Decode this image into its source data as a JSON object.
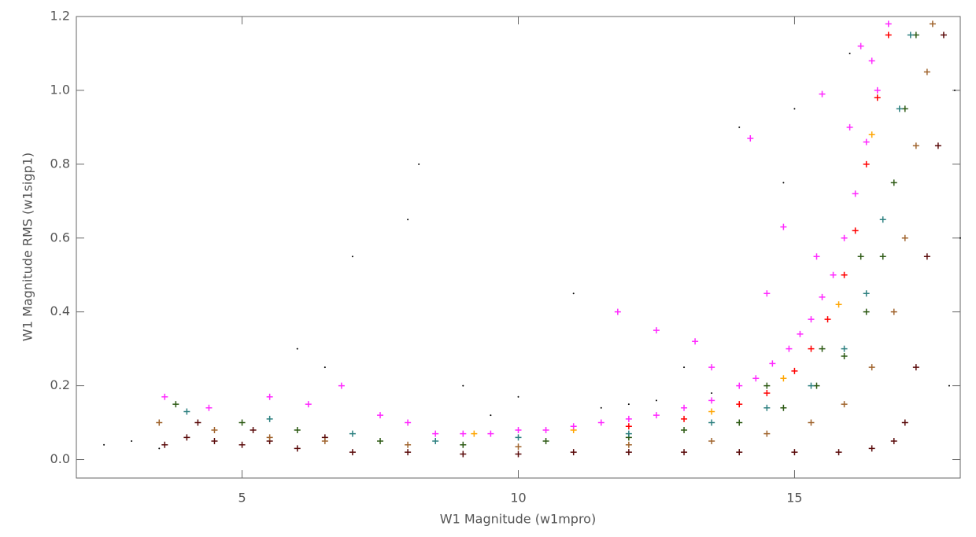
{
  "chart_data": {
    "type": "scatter",
    "xlabel": "W1 Magnitude (w1mpro)",
    "ylabel": "W1 Magnitude RMS (w1sigp1)",
    "xlim": [
      2,
      18
    ],
    "xticks": [
      5,
      10,
      15
    ],
    "ylim": [
      -0.05,
      1.2
    ],
    "yticks": [
      {
        "value": 0,
        "label": "0.0"
      },
      0.2,
      0.4,
      0.6,
      0.8,
      {
        "value": 1,
        "label": "1.0"
      },
      1.2
    ],
    "series": [
      {
        "color": "#000000",
        "marker": ".",
        "x": [
          2.5,
          3,
          3.5,
          4,
          6,
          7,
          8,
          9,
          10,
          11,
          12,
          13,
          14,
          15,
          16,
          17.8,
          18,
          17.9,
          9.5,
          11.5,
          12.5,
          13.5,
          8.2,
          6.5,
          14.8
        ],
        "y": [
          0.04,
          0.05,
          0.03,
          0.06,
          0.3,
          0.55,
          0.65,
          0.2,
          0.17,
          0.45,
          0.15,
          0.25,
          0.9,
          0.95,
          1.1,
          0.2,
          0.6,
          1.0,
          0.12,
          0.14,
          0.16,
          0.18,
          0.8,
          0.25,
          0.75
        ]
      },
      {
        "color": "#5a0a0a",
        "marker": "+",
        "x": [
          3.6,
          4,
          4.5,
          5,
          5.5,
          6,
          7,
          8,
          9,
          10,
          11,
          12,
          13,
          14,
          15,
          15.8,
          16.4,
          16.8,
          17.0,
          17.2,
          17.4,
          17.6,
          17.7,
          4.2,
          5.2,
          6.5
        ],
        "y": [
          0.04,
          0.06,
          0.05,
          0.04,
          0.05,
          0.03,
          0.02,
          0.02,
          0.015,
          0.015,
          0.02,
          0.02,
          0.02,
          0.02,
          0.02,
          0.02,
          0.03,
          0.05,
          0.1,
          0.25,
          0.55,
          0.85,
          1.15,
          0.1,
          0.08,
          0.06
        ]
      },
      {
        "color": "#a0642d",
        "marker": "+",
        "x": [
          3.5,
          4.5,
          5.5,
          6.5,
          8,
          10,
          12,
          13.5,
          14.5,
          15.3,
          15.9,
          16.4,
          16.8,
          17.0,
          17.2,
          17.4,
          17.5
        ],
        "y": [
          0.1,
          0.08,
          0.06,
          0.05,
          0.04,
          0.035,
          0.04,
          0.05,
          0.07,
          0.1,
          0.15,
          0.25,
          0.4,
          0.6,
          0.85,
          1.05,
          1.18
        ]
      },
      {
        "color": "#2d5a14",
        "marker": "+",
        "x": [
          3.8,
          5,
          6,
          7.5,
          9,
          10.5,
          12,
          13,
          14,
          14.8,
          15.4,
          15.9,
          16.3,
          16.6,
          16.8,
          17.0,
          17.2,
          14.5,
          15.5,
          16.2
        ],
        "y": [
          0.15,
          0.1,
          0.08,
          0.05,
          0.04,
          0.05,
          0.06,
          0.08,
          0.1,
          0.14,
          0.2,
          0.28,
          0.4,
          0.55,
          0.75,
          0.95,
          1.15,
          0.2,
          0.3,
          0.55
        ]
      },
      {
        "color": "#2d8080",
        "marker": "+",
        "x": [
          4,
          5.5,
          7,
          8.5,
          10,
          12,
          13.5,
          14.5,
          15.3,
          15.9,
          16.3,
          16.6,
          16.9,
          17.1
        ],
        "y": [
          0.13,
          0.11,
          0.07,
          0.05,
          0.06,
          0.07,
          0.1,
          0.14,
          0.2,
          0.3,
          0.45,
          0.65,
          0.95,
          1.15
        ]
      },
      {
        "color": "#ffa500",
        "marker": "+",
        "x": [
          9.2,
          11,
          13.5,
          14.8,
          15.8,
          16.4
        ],
        "y": [
          0.07,
          0.08,
          0.13,
          0.22,
          0.42,
          0.88
        ]
      },
      {
        "color": "#ff0000",
        "marker": "+",
        "x": [
          12,
          13,
          14,
          14.5,
          15,
          15.3,
          15.6,
          15.9,
          16.1,
          16.3,
          16.5,
          16.7
        ],
        "y": [
          0.09,
          0.11,
          0.15,
          0.18,
          0.24,
          0.3,
          0.38,
          0.5,
          0.62,
          0.8,
          0.98,
          1.15
        ]
      },
      {
        "color": "#ff28ff",
        "marker": "+",
        "x": [
          3.6,
          4.4,
          5.5,
          6.2,
          6.8,
          7.5,
          8,
          8.5,
          9,
          9.5,
          10,
          10.5,
          11,
          11.5,
          12,
          12.5,
          13,
          13.5,
          14,
          14.3,
          14.6,
          14.9,
          15.1,
          15.3,
          15.5,
          15.7,
          15.9,
          16.1,
          16.3,
          16.5,
          16.7,
          11.8,
          12.5,
          13.2,
          14.2,
          14.8,
          15.5,
          16.2,
          13.5,
          14.5,
          15.4,
          16.0,
          16.4
        ],
        "y": [
          0.17,
          0.14,
          0.17,
          0.15,
          0.2,
          0.12,
          0.1,
          0.07,
          0.07,
          0.07,
          0.08,
          0.08,
          0.09,
          0.1,
          0.11,
          0.12,
          0.14,
          0.16,
          0.2,
          0.22,
          0.26,
          0.3,
          0.34,
          0.38,
          0.44,
          0.5,
          0.6,
          0.72,
          0.86,
          1.0,
          1.18,
          0.4,
          0.35,
          0.32,
          0.87,
          0.63,
          0.99,
          1.12,
          0.25,
          0.45,
          0.55,
          0.9,
          1.08
        ]
      }
    ]
  }
}
